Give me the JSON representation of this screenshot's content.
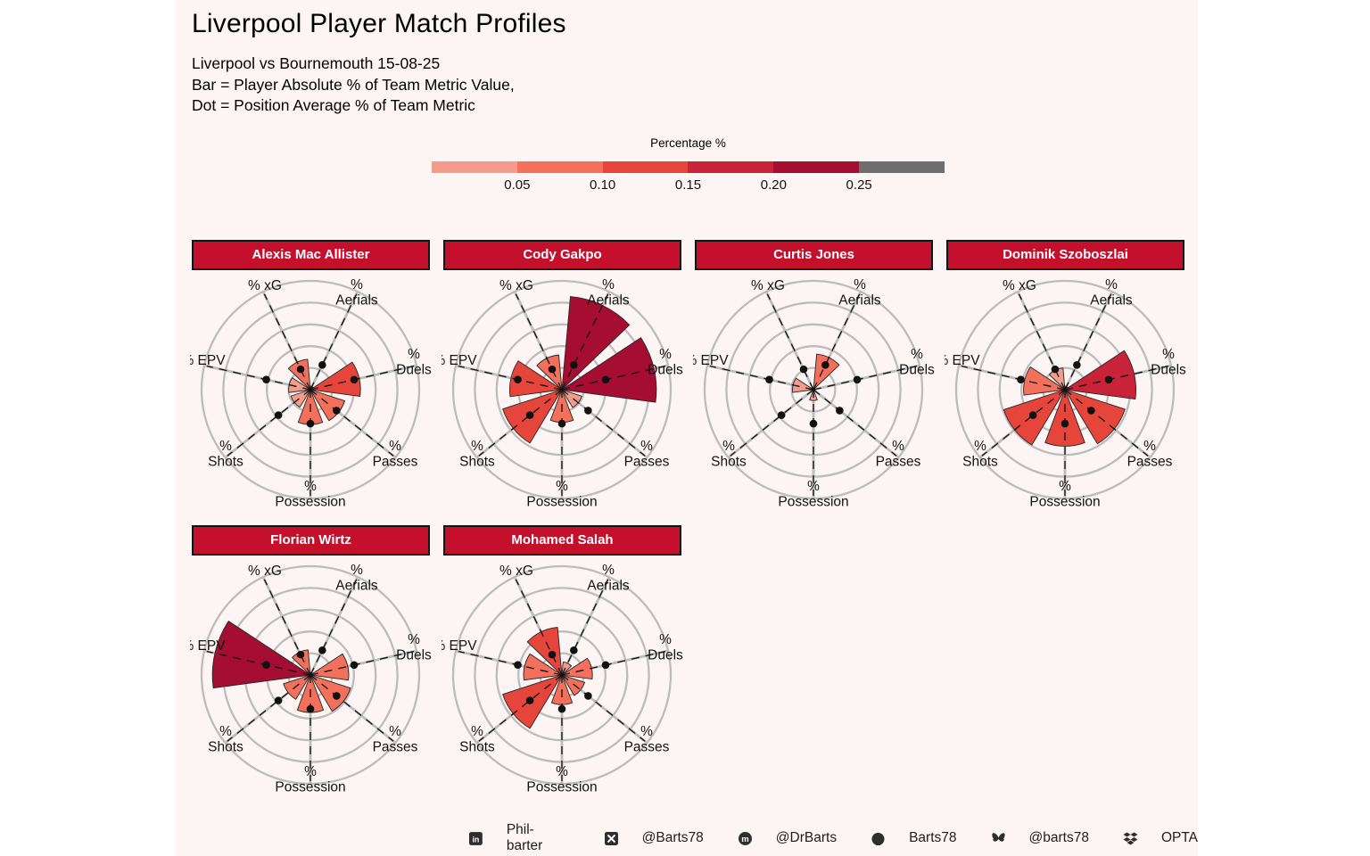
{
  "header": {
    "title": "Liverpool Player Match Profiles",
    "subtitle_lines": [
      "Liverpool vs Bournemouth 15-08-25",
      "Bar = Player Absolute % of Team Metric Value,",
      "Dot = Position Average % of Team Metric"
    ]
  },
  "legend": {
    "title": "Percentage %",
    "ticks": [
      "0.05",
      "0.10",
      "0.15",
      "0.20",
      "0.25"
    ],
    "bin_colors": [
      "#f39c8c",
      "#f2705c",
      "#e6453c",
      "#c82338",
      "#a50d33"
    ],
    "overflow_color": "#6e6e70"
  },
  "colors": {
    "panel_background": "#fdf5f3",
    "header_red": "#c5102d",
    "ring_gray": "#bcbcbc",
    "dot_black": "#111111"
  },
  "chart_data": {
    "type": "bar",
    "coordinate": "polar",
    "title": "Liverpool Player Match Profiles",
    "axes": [
      "% xG",
      "% Aerials",
      "% Duels",
      "% Passes",
      "% Possession",
      "% Shots",
      "% EPV"
    ],
    "metrics": [
      "xG",
      "Aerials",
      "Duels",
      "Passes",
      "Possession",
      "Shots",
      "EPV"
    ],
    "scale": {
      "rings": 5,
      "ring_step": 0.05,
      "max": 0.25,
      "grid": true
    },
    "position_average_dots": {
      "xG": 0.052,
      "Aerials": 0.063,
      "Duels": 0.103,
      "Passes": 0.077,
      "Possession": 0.078,
      "Shots": 0.094,
      "EPV": 0.104
    },
    "series": [
      {
        "name": "Alexis Mac Allister",
        "bars": {
          "xG": 0.07,
          "Aerials": 0.008,
          "Duels": 0.115,
          "Passes": 0.083,
          "Possession": 0.08,
          "Shots": 0.047,
          "EPV": 0.05
        }
      },
      {
        "name": "Cody Gakpo",
        "bars": {
          "xG": 0.08,
          "Aerials": 0.215,
          "Duels": 0.217,
          "Passes": 0.048,
          "Possession": 0.075,
          "Shots": 0.143,
          "EPV": 0.12
        }
      },
      {
        "name": "Curtis Jones",
        "bars": {
          "xG": 0.005,
          "Aerials": 0.082,
          "Duels": 0.003,
          "Passes": 0.004,
          "Possession": 0.025,
          "Shots": 0.003,
          "EPV": 0.048
        }
      },
      {
        "name": "Dominik Szoboszlai",
        "bars": {
          "xG": 0.05,
          "Aerials": 0.008,
          "Duels": 0.163,
          "Passes": 0.145,
          "Possession": 0.13,
          "Shots": 0.148,
          "EPV": 0.095
        }
      },
      {
        "name": "Florian Wirtz",
        "bars": {
          "xG": 0.058,
          "Aerials": 0.006,
          "Duels": 0.088,
          "Passes": 0.097,
          "Possession": 0.086,
          "Shots": 0.065,
          "EPV": 0.225
        }
      },
      {
        "name": "Mohamed Salah",
        "bars": {
          "xG": 0.11,
          "Aerials": 0.03,
          "Duels": 0.07,
          "Passes": 0.055,
          "Possession": 0.068,
          "Shots": 0.143,
          "EPV": 0.088
        }
      }
    ]
  },
  "footer": {
    "links": [
      {
        "icon": "linkedin-icon",
        "label": "Phil-barter"
      },
      {
        "icon": "x-icon",
        "label": "@Barts78"
      },
      {
        "icon": "mastodon-icon",
        "label": "@DrBarts"
      },
      {
        "icon": "github-icon",
        "label": "Barts78"
      },
      {
        "icon": "bluesky-icon",
        "label": "@barts78"
      },
      {
        "icon": "dropbox-icon",
        "label": "OPTA"
      }
    ]
  }
}
